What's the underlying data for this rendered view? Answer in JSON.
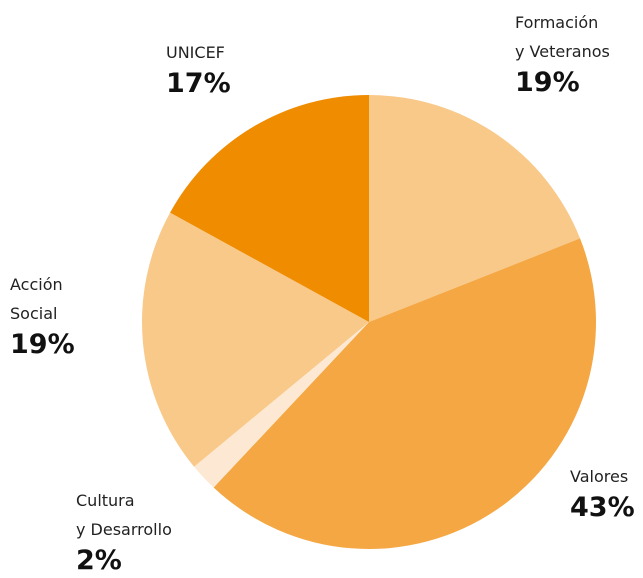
{
  "chart_data": {
    "type": "pie",
    "categories": [
      [
        "Formación",
        "y Veteranos"
      ],
      [
        "Valores"
      ],
      [
        "Cultura",
        "y Desarrollo"
      ],
      [
        "Acción",
        "Social"
      ],
      [
        "UNICEF"
      ]
    ],
    "values": [
      19,
      43,
      2,
      19,
      17
    ],
    "value_labels": [
      "19%",
      "43%",
      "2%",
      "19%",
      "17%"
    ],
    "colors": [
      "#f9c98a",
      "#f4a742",
      "#fde9d3",
      "#f9c98a",
      "#ef8c00"
    ]
  }
}
